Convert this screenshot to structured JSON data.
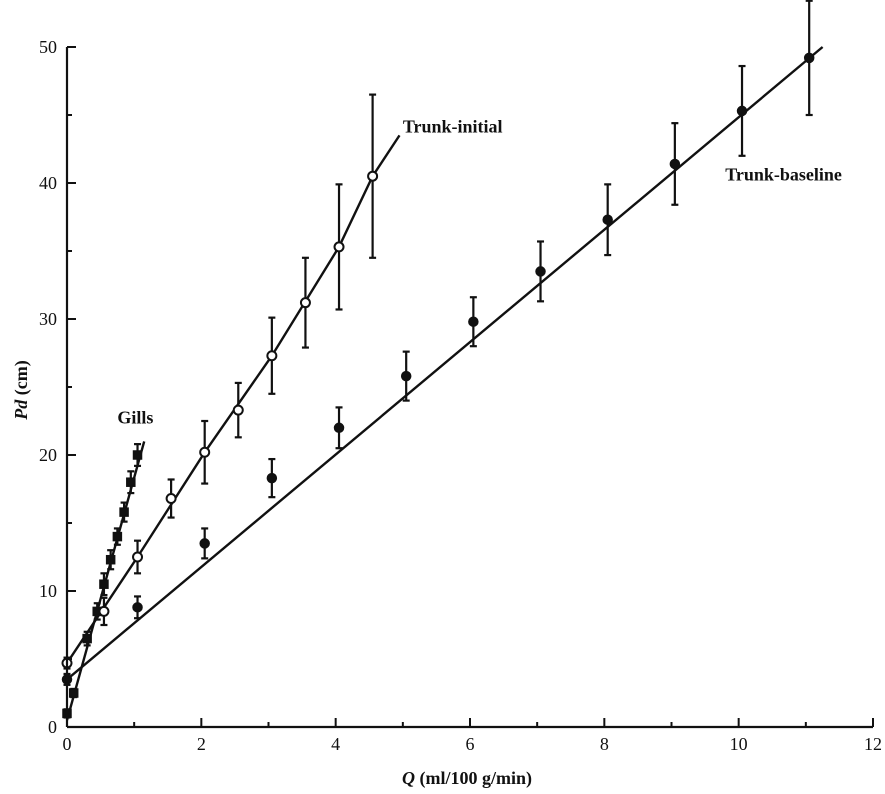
{
  "chart_data": {
    "type": "scatter",
    "xlabel_symbol": "Q",
    "xlabel_rest": " (ml/100 g/min)",
    "ylabel_symbol": "Pd",
    "ylabel_rest": " (cm)",
    "xlim": [
      0,
      12
    ],
    "ylim": [
      0,
      50
    ],
    "xticks": [
      0,
      2,
      4,
      6,
      8,
      10,
      12
    ],
    "yticks": [
      0,
      10,
      20,
      30,
      40,
      50
    ],
    "grid": false,
    "series": [
      {
        "name": "Gills",
        "marker": "filled-square",
        "points": [
          {
            "x": 0.0,
            "y": 1.0,
            "err": 0.3
          },
          {
            "x": 0.1,
            "y": 2.5,
            "err": 0.3
          },
          {
            "x": 0.3,
            "y": 6.5,
            "err": 0.5
          },
          {
            "x": 0.45,
            "y": 8.5,
            "err": 0.6
          },
          {
            "x": 0.55,
            "y": 10.5,
            "err": 0.8
          },
          {
            "x": 0.65,
            "y": 12.3,
            "err": 0.7
          },
          {
            "x": 0.75,
            "y": 14.0,
            "err": 0.6
          },
          {
            "x": 0.85,
            "y": 15.8,
            "err": 0.7
          },
          {
            "x": 0.95,
            "y": 18.0,
            "err": 0.8
          },
          {
            "x": 1.05,
            "y": 20.0,
            "err": 0.8
          }
        ],
        "line": [
          [
            0.0,
            0.5
          ],
          [
            1.15,
            21.0
          ]
        ]
      },
      {
        "name": "Trunk-initial",
        "marker": "open-circle",
        "points": [
          {
            "x": 0.0,
            "y": 4.7,
            "err": 0.4
          },
          {
            "x": 0.55,
            "y": 8.5,
            "err": 1.0
          },
          {
            "x": 1.05,
            "y": 12.5,
            "err": 1.2
          },
          {
            "x": 1.55,
            "y": 16.8,
            "err": 1.4
          },
          {
            "x": 2.05,
            "y": 20.2,
            "err": 2.3
          },
          {
            "x": 2.55,
            "y": 23.3,
            "err": 2.0
          },
          {
            "x": 3.05,
            "y": 27.3,
            "err": 2.8
          },
          {
            "x": 3.55,
            "y": 31.2,
            "err": 3.3
          },
          {
            "x": 4.05,
            "y": 35.3,
            "err": 4.6
          },
          {
            "x": 4.55,
            "y": 40.5,
            "err": 6.0
          }
        ],
        "line": [
          [
            0.0,
            4.7
          ],
          [
            1.05,
            12.5
          ],
          [
            2.05,
            20.2
          ],
          [
            3.05,
            27.3
          ],
          [
            4.05,
            35.3
          ],
          [
            4.55,
            40.5
          ],
          [
            4.95,
            43.5
          ]
        ]
      },
      {
        "name": "Trunk-baseline",
        "marker": "filled-circle",
        "points": [
          {
            "x": 0.0,
            "y": 3.5,
            "err": 0.4
          },
          {
            "x": 1.05,
            "y": 8.8,
            "err": 0.8
          },
          {
            "x": 2.05,
            "y": 13.5,
            "err": 1.1
          },
          {
            "x": 3.05,
            "y": 18.3,
            "err": 1.4
          },
          {
            "x": 4.05,
            "y": 22.0,
            "err": 1.5
          },
          {
            "x": 5.05,
            "y": 25.8,
            "err": 1.8
          },
          {
            "x": 6.05,
            "y": 29.8,
            "err": 1.8
          },
          {
            "x": 7.05,
            "y": 33.5,
            "err": 2.2
          },
          {
            "x": 8.05,
            "y": 37.3,
            "err": 2.6
          },
          {
            "x": 9.05,
            "y": 41.4,
            "err": 3.0
          },
          {
            "x": 10.05,
            "y": 45.3,
            "err": 3.3
          },
          {
            "x": 11.05,
            "y": 49.2,
            "err": 4.2
          }
        ],
        "line": [
          [
            0.0,
            3.5
          ],
          [
            11.25,
            50.0
          ]
        ]
      }
    ],
    "series_label_anchors": [
      {
        "name": "Gills",
        "x": 0.75,
        "y": 22.3
      },
      {
        "name": "Trunk-initial",
        "x": 5.0,
        "y": 43.7
      },
      {
        "name": "Trunk-baseline",
        "x": 9.8,
        "y": 40.2
      }
    ]
  }
}
